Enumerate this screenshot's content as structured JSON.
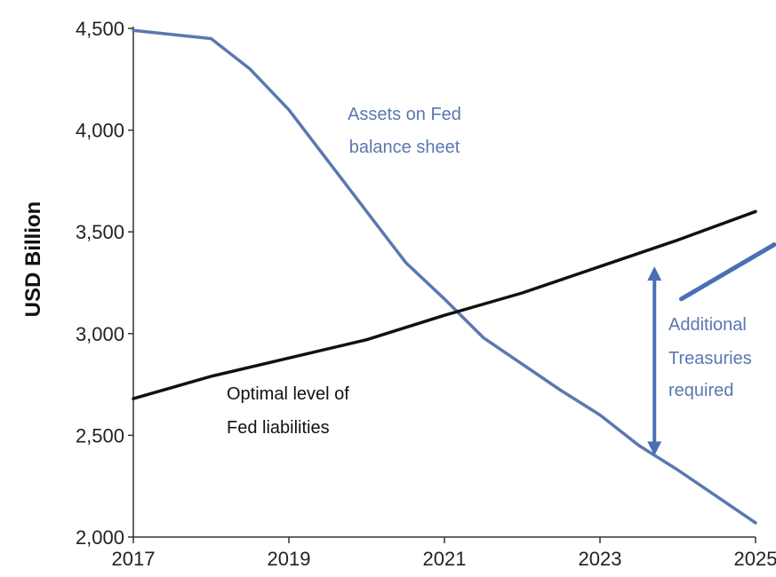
{
  "chart_data": {
    "type": "line",
    "title": "",
    "xlabel": "",
    "ylabel": "USD Billion",
    "xlim": [
      2017,
      2025
    ],
    "ylim": [
      2000,
      4500
    ],
    "x_ticks": [
      "2017",
      "2019",
      "2021",
      "2023",
      "2025"
    ],
    "y_ticks": [
      "2,000",
      "2,500",
      "3,000",
      "3,500",
      "4,000",
      "4,500"
    ],
    "grid": false,
    "legend": "none",
    "series": [
      {
        "name": "",
        "color": "#5a78b0",
        "points": [
          [
            2017,
            4490
          ],
          [
            2018,
            4450
          ],
          [
            2018.5,
            4300
          ],
          [
            2019,
            4100
          ],
          [
            2019.6,
            3800
          ],
          [
            2020,
            3600
          ],
          [
            2020.5,
            3350
          ],
          [
            2021,
            3170
          ],
          [
            2021.5,
            2980
          ],
          [
            2022,
            2850
          ],
          [
            2022.5,
            2720
          ],
          [
            2023,
            2600
          ],
          [
            2023.5,
            2450
          ],
          [
            2024,
            2330
          ],
          [
            2024.5,
            2200
          ],
          [
            2025,
            2070
          ]
        ]
      },
      {
        "name": "",
        "color": "#111111",
        "points": [
          [
            2017,
            2680
          ],
          [
            2018,
            2790
          ],
          [
            2019,
            2880
          ],
          [
            2020,
            2970
          ],
          [
            2021,
            3090
          ],
          [
            2022,
            3200
          ],
          [
            2023,
            3330
          ],
          [
            2024,
            3460
          ],
          [
            2025,
            3600
          ]
        ]
      }
    ],
    "annotations": [
      {
        "text": "Assets on Fed",
        "color": "#5a78b0"
      },
      {
        "text": "balance sheet",
        "color": "#5a78b0"
      },
      {
        "text": "Optimal level of",
        "color": "#111111"
      },
      {
        "text": "Fed liabilities",
        "color": "#111111"
      },
      {
        "text": "Additional",
        "color": "#5a78b0"
      },
      {
        "text": "Treasuries",
        "color": "#5a78b0"
      },
      {
        "text": "required",
        "color": "#5a78b0"
      }
    ],
    "arrow": {
      "from": 2400,
      "to": 3330,
      "x": 2023.7,
      "color": "#4a6fb5"
    },
    "callout_line": {
      "from": [
        2024,
        3170
      ],
      "to": [
        2025,
        3420
      ],
      "color": "#4a6fb5"
    }
  }
}
